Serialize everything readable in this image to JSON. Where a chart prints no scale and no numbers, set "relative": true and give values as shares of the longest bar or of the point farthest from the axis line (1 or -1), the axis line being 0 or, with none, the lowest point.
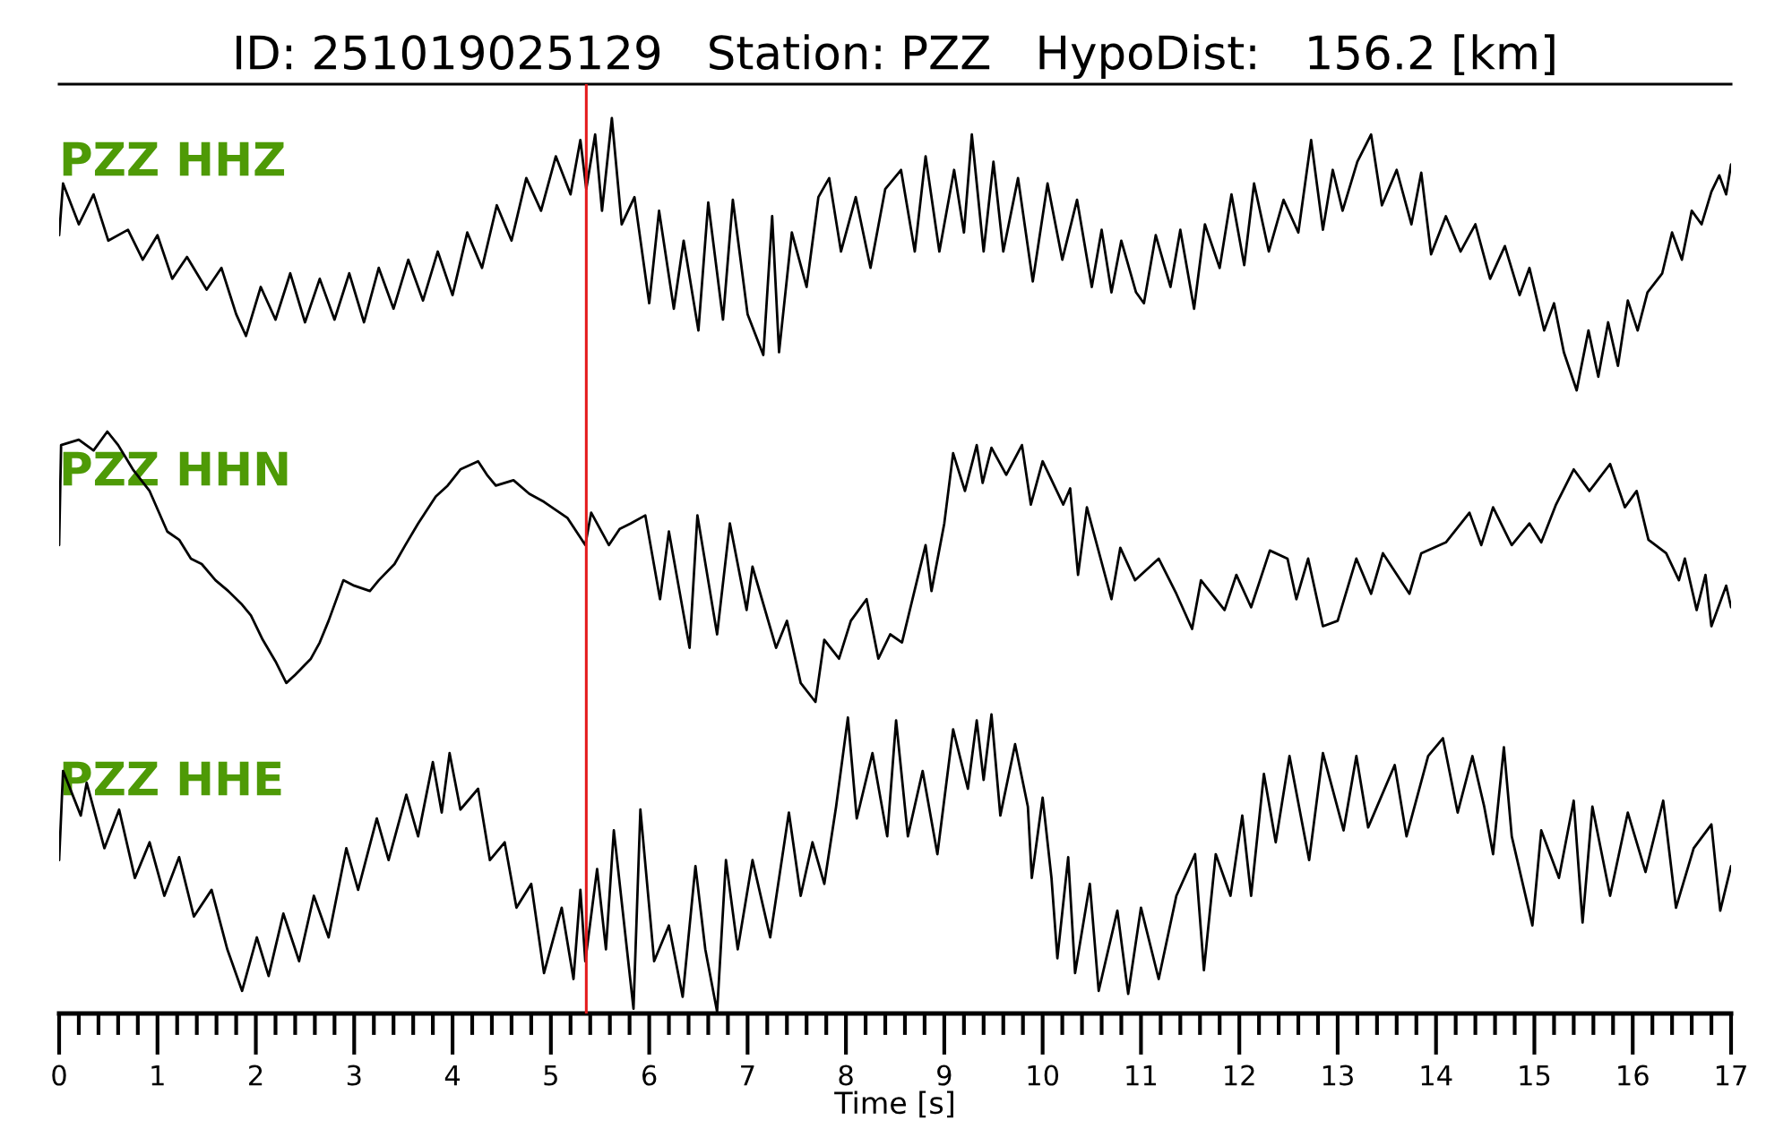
{
  "chart_data": [
    {
      "type": "line",
      "title": "ID: 251019025129   Station: PZZ   HypoDist:   156.2 [km]",
      "relative": true,
      "xlim": [
        0,
        17
      ],
      "tick_labels": false,
      "ref_lines": [
        {
          "axis": "x",
          "value": 5.36,
          "color": "#e41a1c"
        }
      ],
      "series": [
        {
          "name": "PZZ HHZ",
          "color": "#000000",
          "x": [
            0.0,
            0.04,
            0.2,
            0.35,
            0.5,
            0.7,
            0.85,
            1.0,
            1.15,
            1.3,
            1.5,
            1.65,
            1.8,
            1.9,
            2.05,
            2.2,
            2.35,
            2.5,
            2.65,
            2.8,
            2.95,
            3.1,
            3.25,
            3.4,
            3.55,
            3.7,
            3.85,
            4.0,
            4.15,
            4.3,
            4.45,
            4.6,
            4.75,
            4.9,
            5.05,
            5.2,
            5.3,
            5.36,
            5.45,
            5.52,
            5.62,
            5.72,
            5.85,
            6.0,
            6.1,
            6.25,
            6.35,
            6.5,
            6.6,
            6.75,
            6.85,
            7.0,
            7.16,
            7.25,
            7.32,
            7.45,
            7.6,
            7.72,
            7.83,
            7.95,
            8.1,
            8.25,
            8.4,
            8.56,
            8.7,
            8.81,
            8.95,
            9.1,
            9.2,
            9.28,
            9.4,
            9.5,
            9.6,
            9.75,
            9.9,
            10.05,
            10.2,
            10.35,
            10.5,
            10.6,
            10.7,
            10.8,
            10.95,
            11.03,
            11.15,
            11.3,
            11.4,
            11.54,
            11.65,
            11.8,
            11.92,
            12.05,
            12.15,
            12.3,
            12.45,
            12.6,
            12.73,
            12.85,
            12.95,
            13.05,
            13.2,
            13.34,
            13.45,
            13.6,
            13.75,
            13.85,
            13.95,
            14.1,
            14.25,
            14.4,
            14.55,
            14.7,
            14.85,
            14.95,
            15.1,
            15.2,
            15.3,
            15.43,
            15.55,
            15.65,
            15.75,
            15.85,
            15.95,
            16.05,
            16.15,
            16.3,
            16.4,
            16.5,
            16.6,
            16.7,
            16.8,
            16.88,
            16.95,
            17.0
          ],
          "values": [
            0.57,
            0.76,
            0.61,
            0.72,
            0.55,
            0.59,
            0.48,
            0.57,
            0.41,
            0.49,
            0.37,
            0.45,
            0.28,
            0.2,
            0.38,
            0.26,
            0.43,
            0.25,
            0.41,
            0.26,
            0.43,
            0.25,
            0.45,
            0.3,
            0.48,
            0.33,
            0.51,
            0.35,
            0.58,
            0.45,
            0.68,
            0.55,
            0.78,
            0.66,
            0.86,
            0.72,
            0.92,
            0.74,
            0.94,
            0.66,
            1.0,
            0.61,
            0.71,
            0.32,
            0.66,
            0.3,
            0.55,
            0.22,
            0.69,
            0.26,
            0.7,
            0.28,
            0.13,
            0.64,
            0.14,
            0.58,
            0.38,
            0.71,
            0.78,
            0.51,
            0.71,
            0.45,
            0.74,
            0.81,
            0.51,
            0.86,
            0.51,
            0.81,
            0.58,
            0.94,
            0.51,
            0.84,
            0.51,
            0.78,
            0.4,
            0.76,
            0.48,
            0.7,
            0.38,
            0.59,
            0.36,
            0.55,
            0.36,
            0.32,
            0.57,
            0.38,
            0.59,
            0.3,
            0.61,
            0.45,
            0.72,
            0.46,
            0.76,
            0.51,
            0.7,
            0.58,
            0.92,
            0.59,
            0.81,
            0.66,
            0.84,
            0.94,
            0.68,
            0.81,
            0.61,
            0.8,
            0.5,
            0.64,
            0.51,
            0.61,
            0.41,
            0.53,
            0.35,
            0.45,
            0.22,
            0.32,
            0.14,
            0.0,
            0.22,
            0.05,
            0.25,
            0.09,
            0.33,
            0.22,
            0.36,
            0.43,
            0.58,
            0.48,
            0.66,
            0.61,
            0.73,
            0.79,
            0.72,
            0.83
          ]
        }
      ]
    },
    {
      "type": "line",
      "relative": true,
      "xlim": [
        0,
        17
      ],
      "tick_labels": false,
      "ref_lines": [
        {
          "axis": "x",
          "value": 5.36,
          "color": "#e41a1c"
        }
      ],
      "series": [
        {
          "name": "PZZ HHN",
          "color": "#000000",
          "x": [
            0.0,
            0.02,
            0.2,
            0.35,
            0.49,
            0.6,
            0.75,
            0.92,
            1.1,
            1.22,
            1.34,
            1.45,
            1.59,
            1.72,
            1.86,
            1.95,
            2.07,
            2.2,
            2.31,
            2.4,
            2.56,
            2.65,
            2.74,
            2.89,
            3.0,
            3.16,
            3.25,
            3.41,
            3.52,
            3.65,
            3.83,
            3.95,
            4.08,
            4.26,
            4.35,
            4.44,
            4.62,
            4.78,
            4.93,
            5.05,
            5.17,
            5.35,
            5.41,
            5.59,
            5.7,
            5.81,
            5.96,
            6.11,
            6.2,
            6.41,
            6.49,
            6.69,
            6.82,
            6.99,
            7.05,
            7.29,
            7.4,
            7.54,
            7.69,
            7.78,
            7.93,
            8.05,
            8.21,
            8.33,
            8.45,
            8.57,
            8.81,
            8.87,
            9.0,
            9.09,
            9.21,
            9.33,
            9.39,
            9.48,
            9.63,
            9.79,
            9.88,
            10.0,
            10.21,
            10.28,
            10.36,
            10.45,
            10.7,
            10.79,
            10.94,
            11.18,
            11.36,
            11.52,
            11.61,
            11.85,
            11.97,
            12.12,
            12.31,
            12.49,
            12.58,
            12.7,
            12.85,
            13.0,
            13.19,
            13.34,
            13.46,
            13.73,
            13.85,
            14.1,
            14.34,
            14.46,
            14.58,
            14.77,
            14.95,
            15.07,
            15.22,
            15.4,
            15.56,
            15.77,
            15.92,
            16.04,
            16.16,
            16.34,
            16.47,
            16.53,
            16.65,
            16.74,
            16.8,
            16.95,
            17.0
          ],
          "values": [
            0.58,
            0.95,
            0.97,
            0.93,
            1.0,
            0.95,
            0.86,
            0.78,
            0.63,
            0.6,
            0.53,
            0.51,
            0.45,
            0.41,
            0.36,
            0.32,
            0.23,
            0.15,
            0.07,
            0.1,
            0.16,
            0.22,
            0.3,
            0.45,
            0.43,
            0.41,
            0.45,
            0.51,
            0.58,
            0.66,
            0.76,
            0.8,
            0.86,
            0.89,
            0.84,
            0.8,
            0.82,
            0.77,
            0.74,
            0.71,
            0.68,
            0.58,
            0.7,
            0.58,
            0.64,
            0.66,
            0.69,
            0.38,
            0.63,
            0.2,
            0.69,
            0.25,
            0.66,
            0.34,
            0.5,
            0.2,
            0.3,
            0.07,
            0.0,
            0.23,
            0.16,
            0.3,
            0.38,
            0.16,
            0.25,
            0.22,
            0.58,
            0.41,
            0.66,
            0.92,
            0.78,
            0.95,
            0.81,
            0.94,
            0.84,
            0.95,
            0.73,
            0.89,
            0.73,
            0.79,
            0.47,
            0.72,
            0.38,
            0.57,
            0.45,
            0.53,
            0.4,
            0.27,
            0.45,
            0.34,
            0.47,
            0.35,
            0.56,
            0.53,
            0.38,
            0.53,
            0.28,
            0.3,
            0.53,
            0.4,
            0.55,
            0.4,
            0.55,
            0.59,
            0.7,
            0.58,
            0.72,
            0.58,
            0.66,
            0.59,
            0.73,
            0.86,
            0.78,
            0.88,
            0.72,
            0.78,
            0.6,
            0.55,
            0.45,
            0.53,
            0.34,
            0.47,
            0.28,
            0.43,
            0.35
          ]
        }
      ]
    },
    {
      "type": "line",
      "relative": true,
      "xlim": [
        0,
        17
      ],
      "xlabel": "Time [s]",
      "tick_labels": "x",
      "xticks": [
        0,
        {
          "value": 0.2,
          "label": null
        },
        {
          "value": 0.4,
          "label": null
        },
        {
          "value": 0.6,
          "label": null
        },
        {
          "value": 0.8,
          "label": null
        },
        1,
        {
          "value": 1.2,
          "label": null
        },
        {
          "value": 1.4,
          "label": null
        },
        {
          "value": 1.6,
          "label": null
        },
        {
          "value": 1.8,
          "label": null
        },
        2,
        {
          "value": 2.2,
          "label": null
        },
        {
          "value": 2.4,
          "label": null
        },
        {
          "value": 2.6,
          "label": null
        },
        {
          "value": 2.8,
          "label": null
        },
        3,
        {
          "value": 3.2,
          "label": null
        },
        {
          "value": 3.4,
          "label": null
        },
        {
          "value": 3.6,
          "label": null
        },
        {
          "value": 3.8,
          "label": null
        },
        4,
        {
          "value": 4.2,
          "label": null
        },
        {
          "value": 4.4,
          "label": null
        },
        {
          "value": 4.6,
          "label": null
        },
        {
          "value": 4.8,
          "label": null
        },
        5,
        {
          "value": 5.2,
          "label": null
        },
        {
          "value": 5.4,
          "label": null
        },
        {
          "value": 5.6,
          "label": null
        },
        {
          "value": 5.8,
          "label": null
        },
        6,
        {
          "value": 6.2,
          "label": null
        },
        {
          "value": 6.4,
          "label": null
        },
        {
          "value": 6.6,
          "label": null
        },
        {
          "value": 6.8,
          "label": null
        },
        7,
        {
          "value": 7.2,
          "label": null
        },
        {
          "value": 7.4,
          "label": null
        },
        {
          "value": 7.6,
          "label": null
        },
        {
          "value": 7.8,
          "label": null
        },
        8,
        {
          "value": 8.2,
          "label": null
        },
        {
          "value": 8.4,
          "label": null
        },
        {
          "value": 8.6,
          "label": null
        },
        {
          "value": 8.8,
          "label": null
        },
        9,
        {
          "value": 9.2,
          "label": null
        },
        {
          "value": 9.4,
          "label": null
        },
        {
          "value": 9.6,
          "label": null
        },
        {
          "value": 9.8,
          "label": null
        },
        10,
        {
          "value": 10.2,
          "label": null
        },
        {
          "value": 10.4,
          "label": null
        },
        {
          "value": 10.6,
          "label": null
        },
        {
          "value": 10.8,
          "label": null
        },
        11,
        {
          "value": 11.2,
          "label": null
        },
        {
          "value": 11.4,
          "label": null
        },
        {
          "value": 11.6,
          "label": null
        },
        {
          "value": 11.8,
          "label": null
        },
        12,
        {
          "value": 12.2,
          "label": null
        },
        {
          "value": 12.4,
          "label": null
        },
        {
          "value": 12.6,
          "label": null
        },
        {
          "value": 12.8,
          "label": null
        },
        13,
        {
          "value": 13.2,
          "label": null
        },
        {
          "value": 13.4,
          "label": null
        },
        {
          "value": 13.6,
          "label": null
        },
        {
          "value": 13.8,
          "label": null
        },
        14,
        {
          "value": 14.2,
          "label": null
        },
        {
          "value": 14.4,
          "label": null
        },
        {
          "value": 14.6,
          "label": null
        },
        {
          "value": 14.8,
          "label": null
        },
        15,
        {
          "value": 15.2,
          "label": null
        },
        {
          "value": 15.4,
          "label": null
        },
        {
          "value": 15.6,
          "label": null
        },
        {
          "value": 15.8,
          "label": null
        },
        16,
        {
          "value": 16.2,
          "label": null
        },
        {
          "value": 16.4,
          "label": null
        },
        {
          "value": 16.6,
          "label": null
        },
        {
          "value": 16.8,
          "label": null
        },
        17
      ],
      "ref_lines": [
        {
          "axis": "x",
          "value": 5.36,
          "color": "#e41a1c"
        }
      ],
      "series": [
        {
          "name": "PZZ HHE",
          "color": "#000000",
          "x": [
            0.0,
            0.04,
            0.22,
            0.28,
            0.46,
            0.61,
            0.77,
            0.92,
            1.07,
            1.22,
            1.37,
            1.55,
            1.71,
            1.86,
            2.01,
            2.13,
            2.28,
            2.44,
            2.59,
            2.74,
            2.92,
            3.04,
            3.23,
            3.35,
            3.53,
            3.65,
            3.8,
            3.89,
            3.97,
            4.08,
            4.26,
            4.38,
            4.53,
            4.65,
            4.8,
            4.93,
            5.11,
            5.23,
            5.3,
            5.35,
            5.47,
            5.56,
            5.64,
            5.84,
            5.91,
            6.05,
            6.2,
            6.34,
            6.47,
            6.57,
            6.69,
            6.78,
            6.9,
            7.05,
            7.23,
            7.42,
            7.54,
            7.66,
            7.78,
            7.9,
            8.02,
            8.11,
            8.27,
            8.42,
            8.51,
            8.63,
            8.78,
            8.93,
            9.09,
            9.24,
            9.33,
            9.4,
            9.48,
            9.57,
            9.72,
            9.85,
            9.89,
            10.0,
            10.09,
            10.15,
            10.26,
            10.33,
            10.48,
            10.57,
            10.76,
            10.87,
            11.0,
            11.18,
            11.36,
            11.55,
            11.64,
            11.76,
            11.91,
            12.03,
            12.12,
            12.25,
            12.37,
            12.51,
            12.71,
            12.85,
            13.06,
            13.19,
            13.31,
            13.58,
            13.7,
            13.92,
            14.07,
            14.22,
            14.37,
            14.49,
            14.58,
            14.69,
            14.77,
            14.98,
            15.07,
            15.25,
            15.4,
            15.49,
            15.59,
            15.77,
            15.95,
            16.13,
            16.31,
            16.44,
            16.62,
            16.8,
            16.89,
            17.0
          ],
          "values": [
            0.51,
            0.81,
            0.66,
            0.77,
            0.55,
            0.68,
            0.45,
            0.57,
            0.39,
            0.52,
            0.32,
            0.41,
            0.21,
            0.07,
            0.25,
            0.12,
            0.33,
            0.17,
            0.39,
            0.25,
            0.55,
            0.41,
            0.65,
            0.51,
            0.73,
            0.59,
            0.84,
            0.67,
            0.87,
            0.68,
            0.75,
            0.51,
            0.57,
            0.35,
            0.43,
            0.13,
            0.35,
            0.11,
            0.41,
            0.17,
            0.48,
            0.21,
            0.61,
            0.01,
            0.68,
            0.17,
            0.29,
            0.05,
            0.49,
            0.21,
            0.0,
            0.51,
            0.21,
            0.51,
            0.25,
            0.67,
            0.39,
            0.57,
            0.43,
            0.69,
            0.99,
            0.65,
            0.87,
            0.59,
            0.98,
            0.59,
            0.81,
            0.53,
            0.95,
            0.75,
            0.98,
            0.78,
            1.0,
            0.66,
            0.9,
            0.69,
            0.45,
            0.72,
            0.45,
            0.18,
            0.52,
            0.13,
            0.43,
            0.07,
            0.34,
            0.06,
            0.35,
            0.11,
            0.39,
            0.53,
            0.14,
            0.53,
            0.39,
            0.66,
            0.39,
            0.8,
            0.57,
            0.86,
            0.51,
            0.87,
            0.61,
            0.86,
            0.62,
            0.83,
            0.59,
            0.86,
            0.92,
            0.67,
            0.86,
            0.69,
            0.53,
            0.89,
            0.59,
            0.29,
            0.61,
            0.45,
            0.71,
            0.3,
            0.69,
            0.39,
            0.67,
            0.47,
            0.71,
            0.35,
            0.55,
            0.63,
            0.34,
            0.49
          ]
        }
      ]
    }
  ]
}
